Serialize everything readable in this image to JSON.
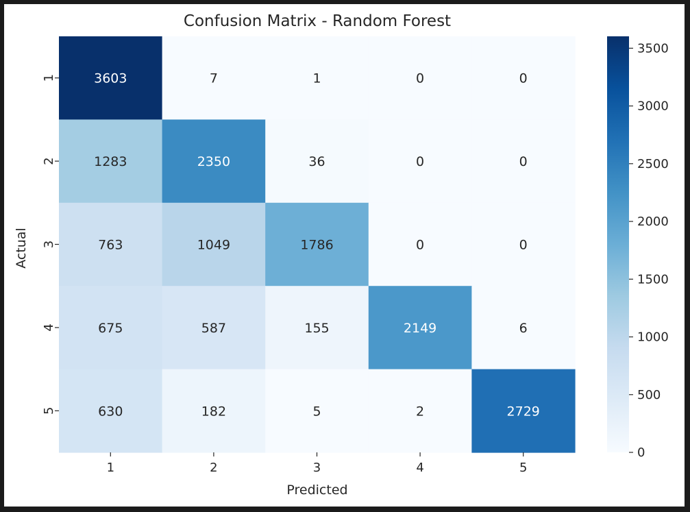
{
  "chart_data": {
    "type": "heatmap",
    "title": "Confusion Matrix - Random Forest",
    "xlabel": "Predicted",
    "ylabel": "Actual",
    "x_categories": [
      "1",
      "2",
      "3",
      "4",
      "5"
    ],
    "y_categories": [
      "1",
      "2",
      "3",
      "4",
      "5"
    ],
    "values": [
      [
        3603,
        7,
        1,
        0,
        0
      ],
      [
        1283,
        2350,
        36,
        0,
        0
      ],
      [
        763,
        1049,
        1786,
        0,
        0
      ],
      [
        675,
        587,
        155,
        2149,
        6
      ],
      [
        630,
        182,
        5,
        2,
        2729
      ]
    ],
    "colormap": "Blues",
    "vmin": 0,
    "vmax": 3603,
    "colorbar_ticks": [
      0,
      500,
      1000,
      1500,
      2000,
      2500,
      3000,
      3500
    ],
    "colors": {
      "low": "#f7fbff",
      "high": "#08306b",
      "text_dark": "#262626",
      "text_light": "#ffffff"
    }
  }
}
